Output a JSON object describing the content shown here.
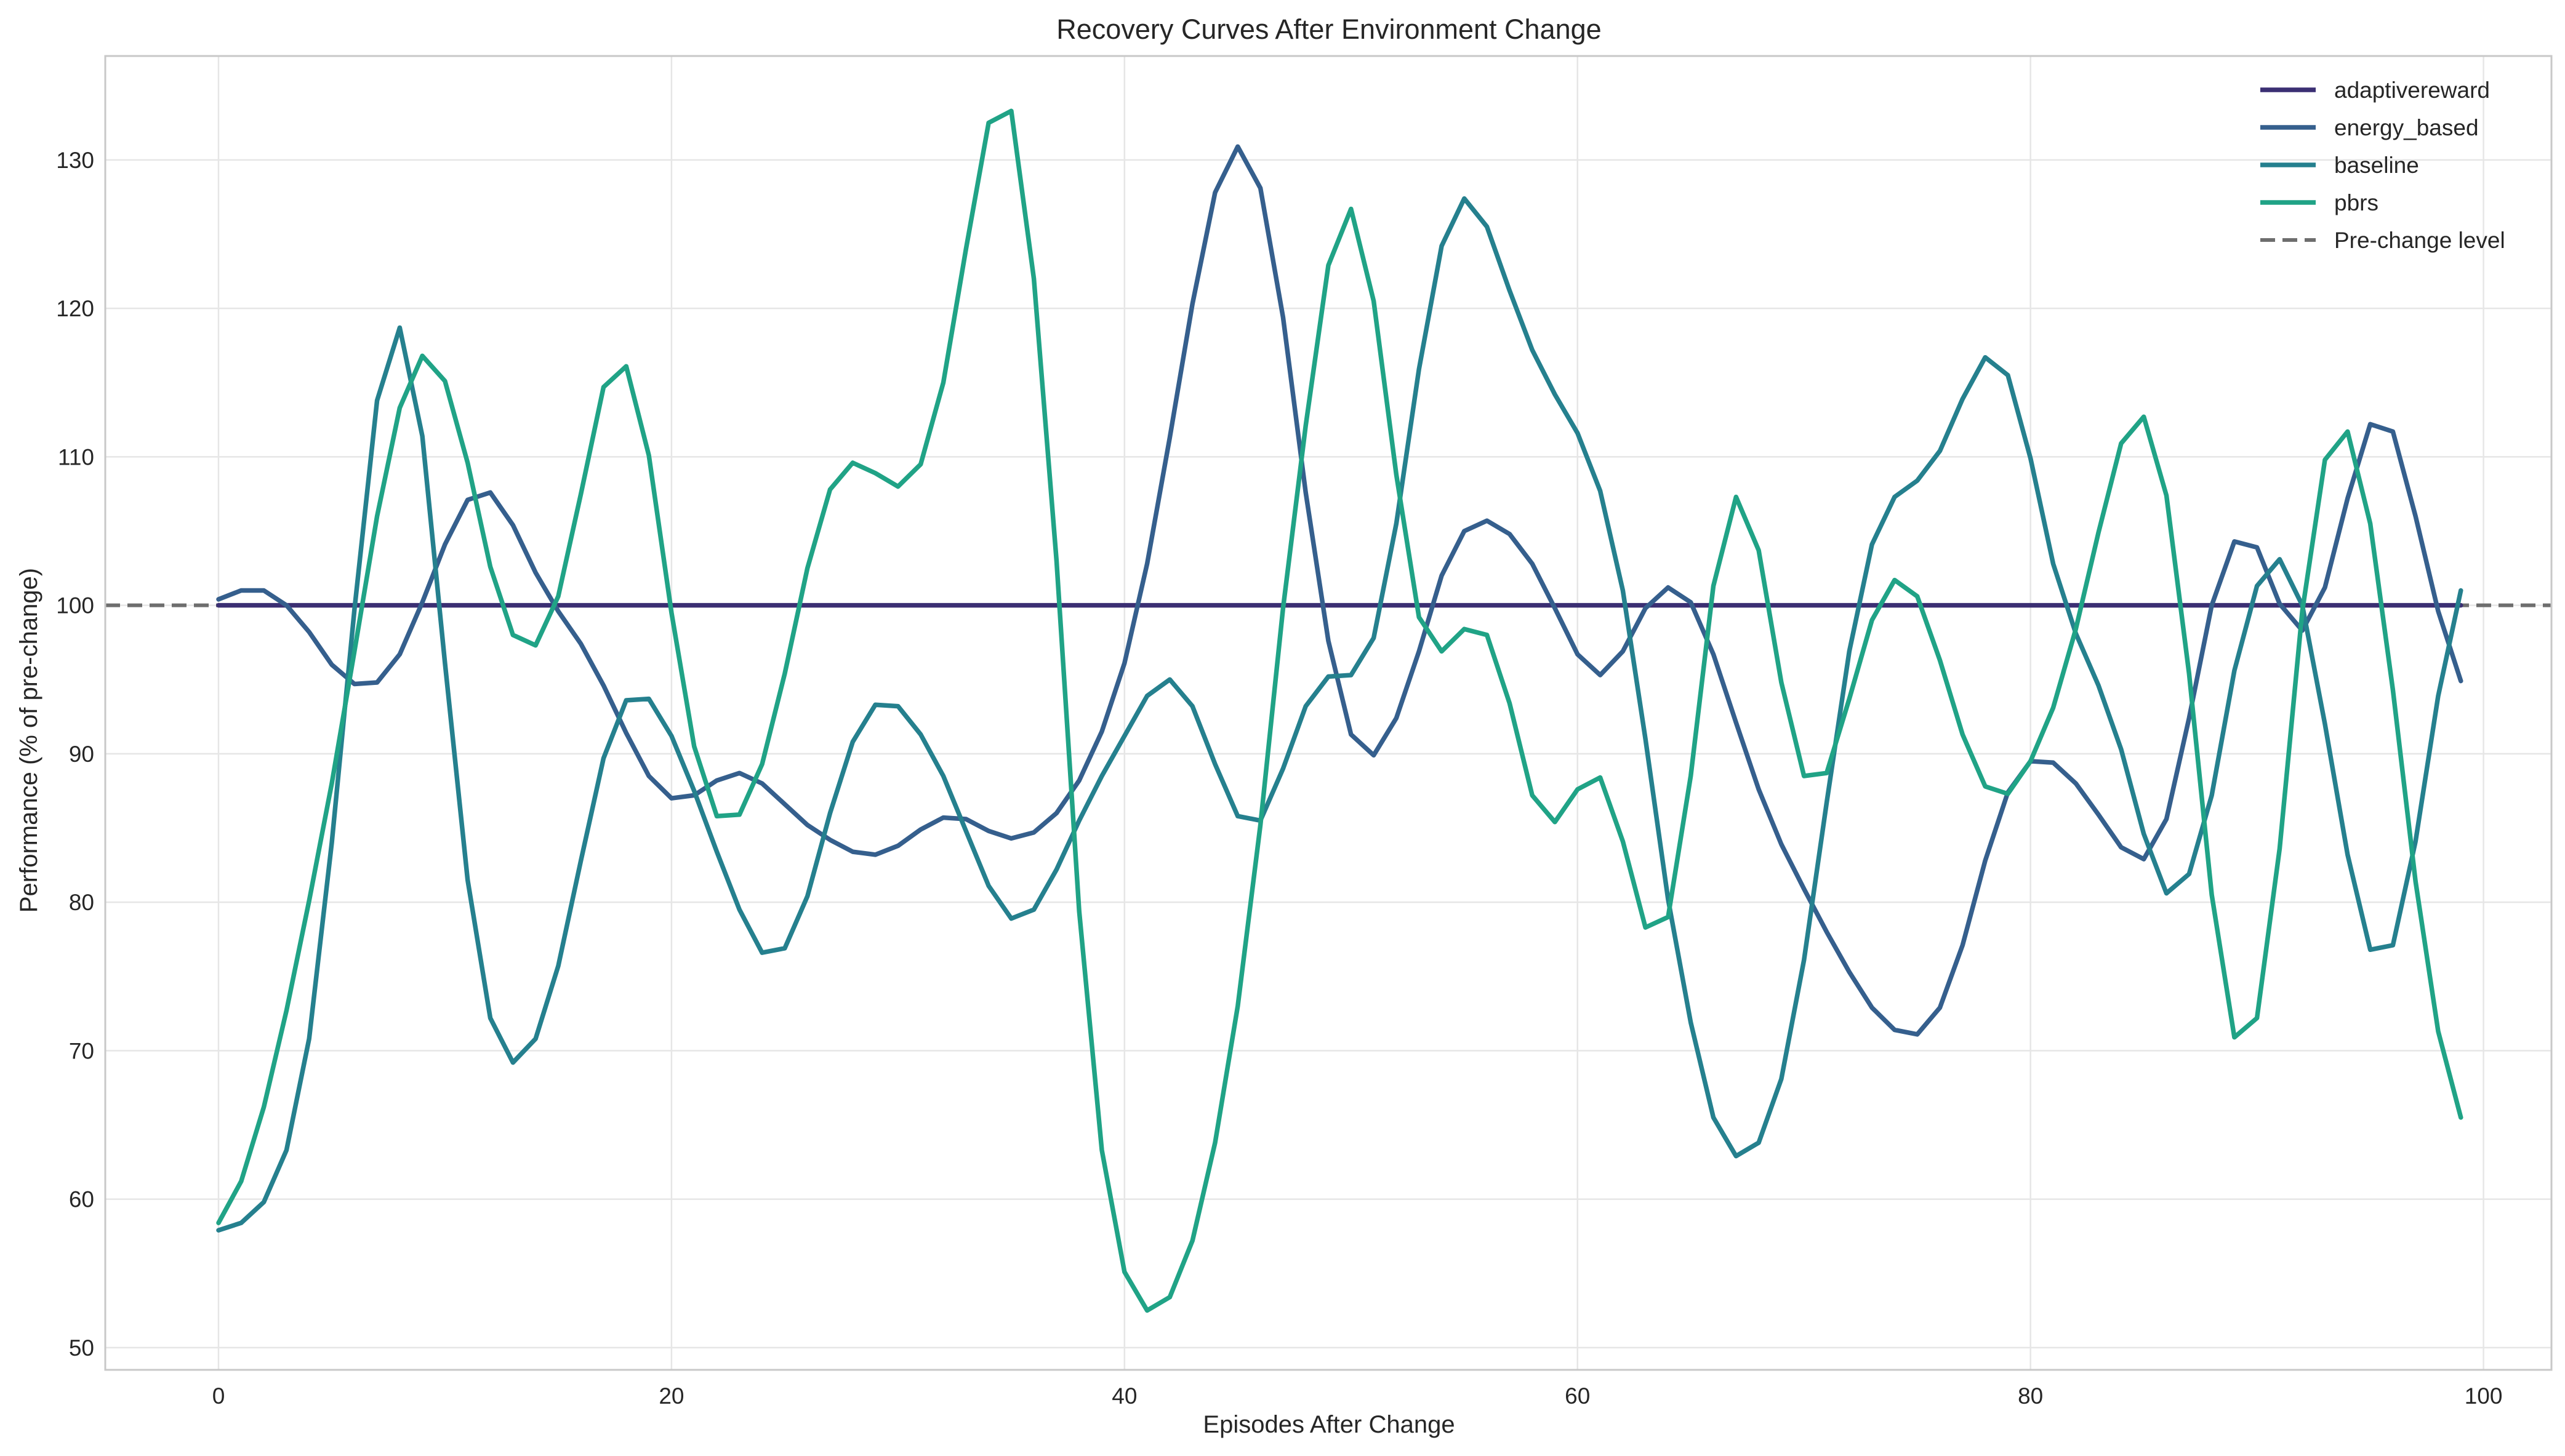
{
  "chart_data": {
    "type": "line",
    "title": "Recovery Curves After Environment Change",
    "xlabel": "Episodes After Change",
    "ylabel": "Performance (% of pre-change)",
    "xlim": [
      -5,
      103
    ],
    "ylim": [
      48.5,
      137
    ],
    "xticks": [
      0,
      20,
      40,
      60,
      80,
      100
    ],
    "yticks": [
      50,
      60,
      70,
      80,
      90,
      100,
      110,
      120,
      130
    ],
    "grid": true,
    "legend_position": "top-right",
    "x": [
      0,
      1,
      2,
      3,
      4,
      5,
      6,
      7,
      8,
      9,
      10,
      11,
      12,
      13,
      14,
      15,
      16,
      17,
      18,
      19,
      20,
      21,
      22,
      23,
      24,
      25,
      26,
      27,
      28,
      29,
      30,
      31,
      32,
      33,
      34,
      35,
      36,
      37,
      38,
      39,
      40,
      41,
      42,
      43,
      44,
      45,
      46,
      47,
      48,
      49,
      50,
      51,
      52,
      53,
      54,
      55,
      56,
      57,
      58,
      59,
      60,
      61,
      62,
      63,
      64,
      65,
      66,
      67,
      68,
      69,
      70,
      71,
      72,
      73,
      74,
      75,
      76,
      77,
      78,
      79,
      80,
      81,
      82,
      83,
      84,
      85,
      86,
      87,
      88,
      89,
      90,
      91,
      92,
      93,
      94,
      95,
      96,
      97,
      98,
      99
    ],
    "series": [
      {
        "name": "adaptivereward",
        "color": "#3b2f73",
        "values": [
          100,
          100,
          100,
          100,
          100,
          100,
          100,
          100,
          100,
          100,
          100,
          100,
          100,
          100,
          100,
          100,
          100,
          100,
          100,
          100,
          100,
          100,
          100,
          100,
          100,
          100,
          100,
          100,
          100,
          100,
          100,
          100,
          100,
          100,
          100,
          100,
          100,
          100,
          100,
          100,
          100,
          100,
          100,
          100,
          100,
          100,
          100,
          100,
          100,
          100,
          100,
          100,
          100,
          100,
          100,
          100,
          100,
          100,
          100,
          100,
          100,
          100,
          100,
          100,
          100,
          100,
          100,
          100,
          100,
          100,
          100,
          100,
          100,
          100,
          100,
          100,
          100,
          100,
          100,
          100,
          100,
          100,
          100,
          100,
          100,
          100,
          100,
          100,
          100,
          100,
          100,
          100,
          100,
          100,
          100,
          100,
          100,
          100,
          100,
          100
        ]
      },
      {
        "name": "energy_based",
        "color": "#355f8d",
        "values": [
          100.4,
          101.0,
          101.0,
          100.0,
          98.2,
          96.0,
          94.7,
          94.8,
          96.7,
          100.2,
          104.1,
          107.1,
          107.6,
          105.4,
          102.2,
          99.6,
          97.4,
          94.6,
          91.4,
          88.5,
          87.0,
          87.2,
          88.2,
          88.7,
          88.0,
          86.6,
          85.2,
          84.2,
          83.4,
          83.2,
          83.8,
          84.9,
          85.7,
          85.6,
          84.8,
          84.3,
          84.7,
          86.0,
          88.2,
          91.5,
          96.1,
          102.8,
          111.3,
          120.3,
          127.8,
          130.9,
          128.1,
          119.4,
          107.6,
          97.6,
          91.3,
          89.9,
          92.4,
          96.9,
          102.0,
          105.0,
          105.7,
          104.8,
          102.8,
          99.8,
          96.7,
          95.3,
          96.9,
          99.8,
          101.2,
          100.2,
          96.7,
          92.1,
          87.6,
          83.9,
          80.9,
          78.0,
          75.3,
          72.9,
          71.4,
          71.1,
          72.9,
          77.1,
          82.8,
          87.4,
          89.5,
          89.4,
          88.0,
          85.9,
          83.7,
          82.9,
          85.6,
          92.4,
          100.0,
          104.3,
          103.9,
          100.1,
          98.3,
          101.2,
          107.2,
          112.2,
          111.7,
          106.0,
          99.6,
          94.9
        ]
      },
      {
        "name": "baseline",
        "color": "#25808e",
        "values": [
          57.9,
          58.4,
          59.8,
          63.3,
          70.8,
          84.0,
          99.7,
          113.8,
          118.7,
          111.4,
          96.1,
          81.5,
          72.2,
          69.2,
          70.8,
          75.7,
          82.8,
          89.7,
          93.6,
          93.7,
          91.2,
          87.5,
          83.4,
          79.5,
          76.6,
          76.9,
          80.4,
          86.0,
          90.8,
          93.3,
          93.2,
          91.3,
          88.5,
          84.8,
          81.1,
          78.9,
          79.5,
          82.2,
          85.5,
          88.5,
          91.2,
          93.9,
          95.0,
          93.2,
          89.3,
          85.8,
          85.5,
          89.0,
          93.2,
          95.2,
          95.3,
          97.8,
          105.5,
          115.9,
          124.2,
          127.4,
          125.5,
          121.2,
          117.2,
          114.2,
          111.6,
          107.7,
          101.0,
          91.0,
          80.2,
          71.9,
          65.5,
          62.9,
          63.8,
          68.1,
          76.1,
          86.7,
          96.9,
          104.1,
          107.3,
          108.4,
          110.4,
          113.9,
          116.7,
          115.5,
          109.9,
          102.8,
          98.1,
          94.6,
          90.3,
          84.6,
          80.6,
          81.9,
          87.2,
          95.6,
          101.3,
          103.1,
          100.0,
          92.0,
          83.2,
          76.8,
          77.1,
          84.1,
          93.9,
          101.0
        ]
      },
      {
        "name": "pbrs",
        "color": "#20a386",
        "values": [
          58.4,
          61.2,
          66.2,
          72.7,
          80.1,
          88.0,
          96.9,
          106.0,
          113.3,
          116.8,
          115.1,
          109.6,
          102.6,
          98.0,
          97.3,
          100.6,
          107.5,
          114.7,
          116.1,
          110.1,
          99.5,
          90.5,
          85.8,
          85.9,
          89.3,
          95.4,
          102.5,
          107.8,
          109.6,
          108.9,
          108.0,
          109.5,
          115.0,
          124.0,
          132.5,
          133.3,
          122.0,
          103.0,
          79.4,
          63.3,
          55.1,
          52.5,
          53.4,
          57.2,
          63.8,
          73.0,
          85.2,
          99.8,
          112.1,
          122.9,
          126.7,
          120.5,
          108.8,
          99.2,
          96.9,
          98.4,
          98.0,
          93.4,
          87.2,
          85.4,
          87.6,
          88.4,
          84.1,
          78.3,
          79.0,
          88.5,
          101.3,
          107.3,
          103.7,
          94.8,
          88.5,
          88.7,
          93.7,
          99.0,
          101.7,
          100.6,
          96.3,
          91.3,
          87.8,
          87.3,
          89.5,
          93.1,
          98.4,
          104.9,
          110.9,
          112.7,
          107.4,
          95.4,
          80.5,
          70.9,
          72.2,
          83.6,
          99.6,
          109.8,
          111.7,
          105.5,
          94.3,
          81.4,
          71.3,
          65.5
        ]
      },
      {
        "name": "Pre-change level",
        "color": "#6e6e6e",
        "style": "dashed",
        "y": 100
      }
    ]
  }
}
